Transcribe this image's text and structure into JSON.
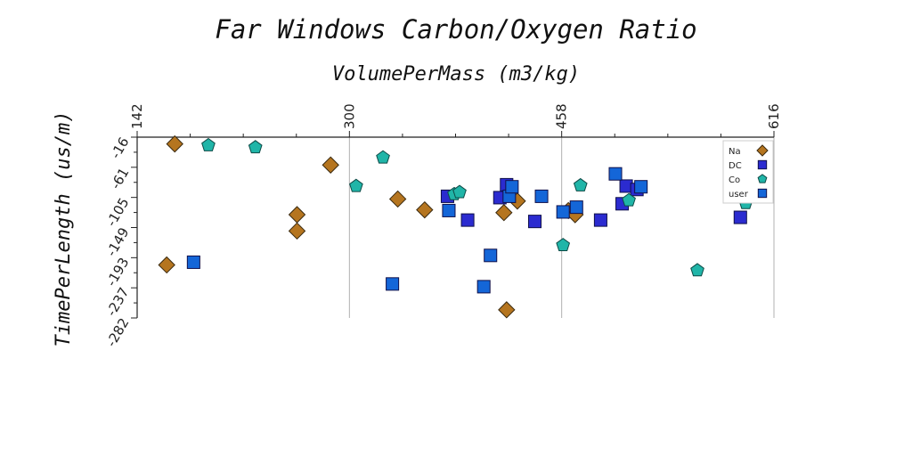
{
  "chart_data": {
    "type": "scatter",
    "title": "Far Windows Carbon/Oxygen Ratio",
    "xlabel": "VolumePerMass (m3/kg)",
    "ylabel": "TimePerLength (us/m)",
    "xlim": [
      142,
      616
    ],
    "ylim": [
      -282,
      -16
    ],
    "xticks": [
      "142",
      "300",
      "458",
      "616"
    ],
    "yticks": [
      "-16",
      "-61",
      "-105",
      "-149",
      "-193",
      "-237",
      "-282"
    ],
    "x_axis_position": "top",
    "grid": "vertical",
    "legend_position": "right",
    "series": [
      {
        "name": "Na",
        "marker": "diamond",
        "color": "#b5751f",
        "points": [
          [
            164,
            -204
          ],
          [
            261,
            -130
          ],
          [
            261,
            -154
          ],
          [
            286,
            -57
          ],
          [
            170,
            -26
          ],
          [
            336,
            -107
          ],
          [
            356,
            -123
          ],
          [
            415,
            -127
          ],
          [
            417,
            -270
          ],
          [
            425,
            -110
          ],
          [
            463,
            -124
          ],
          [
            468,
            -130
          ]
        ]
      },
      {
        "name": "DC",
        "marker": "square",
        "color": "#2b2bd0",
        "points": [
          [
            373,
            -103
          ],
          [
            388,
            -138
          ],
          [
            412,
            -105
          ],
          [
            417,
            -86
          ],
          [
            438,
            -140
          ],
          [
            487,
            -138
          ],
          [
            506,
            -88
          ],
          [
            503,
            -114
          ],
          [
            514,
            -93
          ],
          [
            591,
            -134
          ]
        ]
      },
      {
        "name": "Co",
        "marker": "pentagon",
        "color": "#20b5a8",
        "points": [
          [
            195,
            -28
          ],
          [
            230,
            -31
          ],
          [
            305,
            -88
          ],
          [
            325,
            -46
          ],
          [
            378,
            -100
          ],
          [
            382,
            -97
          ],
          [
            459,
            -175
          ],
          [
            472,
            -87
          ],
          [
            508,
            -109
          ],
          [
            559,
            -212
          ],
          [
            595,
            -113
          ]
        ]
      },
      {
        "name": "user",
        "marker": "square",
        "color": "#1466d8",
        "points": [
          [
            184,
            -200
          ],
          [
            332,
            -232
          ],
          [
            374,
            -124
          ],
          [
            400,
            -236
          ],
          [
            405,
            -190
          ],
          [
            419,
            -103
          ],
          [
            421,
            -89
          ],
          [
            443,
            -103
          ],
          [
            459,
            -126
          ],
          [
            469,
            -119
          ],
          [
            498,
            -70
          ],
          [
            517,
            -89
          ]
        ]
      }
    ]
  }
}
